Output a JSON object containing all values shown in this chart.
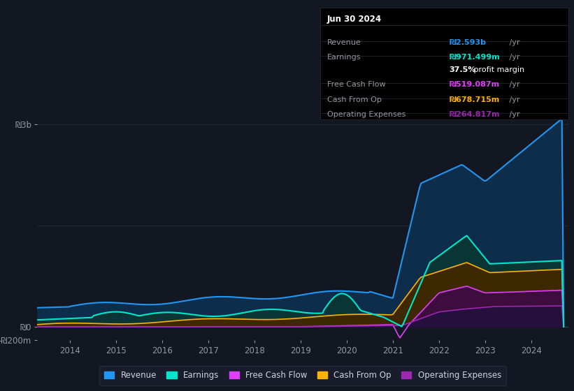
{
  "bg_color": "#131722",
  "plot_bg_color": "#131722",
  "grid_color": "#2a2e39",
  "y_label_3b": "₪3b",
  "y_label_0": "₪0",
  "y_label_neg200m": "-₪200m",
  "x_ticks": [
    2014,
    2015,
    2016,
    2017,
    2018,
    2019,
    2020,
    2021,
    2022,
    2023,
    2024
  ],
  "series_colors": {
    "revenue": "#2196f3",
    "earnings": "#00e5cc",
    "free_cash_flow": "#e040fb",
    "cash_from_op": "#ffb300",
    "operating_expenses": "#9c27b0"
  },
  "fill_colors": {
    "revenue": "#0d2d4a",
    "earnings": "#0a3535",
    "free_cash_flow": "#3d0d3d",
    "cash_from_op": "#3d2800",
    "operating_expenses": "#25103d"
  },
  "tooltip": {
    "date": "Jun 30 2024",
    "rows": [
      {
        "label": "Revenue",
        "value": "₪2.593b /yr",
        "value_color": "#2196f3",
        "bold_val": false
      },
      {
        "label": "Earnings",
        "value": "₪971.499m /yr",
        "value_color": "#00e5cc",
        "bold_val": false
      },
      {
        "label": "",
        "value": "37.5% profit margin",
        "value_color": "#ffffff",
        "bold_val": true
      },
      {
        "label": "Free Cash Flow",
        "value": "₪519.087m /yr",
        "value_color": "#e040fb",
        "bold_val": false
      },
      {
        "label": "Cash From Op",
        "value": "₪678.715m /yr",
        "value_color": "#ffb300",
        "bold_val": false
      },
      {
        "label": "Operating Expenses",
        "value": "₪264.817m /yr",
        "value_color": "#9c27b0",
        "bold_val": false
      }
    ]
  },
  "legend": [
    {
      "label": "Revenue",
      "color": "#2196f3"
    },
    {
      "label": "Earnings",
      "color": "#00e5cc"
    },
    {
      "label": "Free Cash Flow",
      "color": "#e040fb"
    },
    {
      "label": "Cash From Op",
      "color": "#ffb300"
    },
    {
      "label": "Operating Expenses",
      "color": "#9c27b0"
    }
  ]
}
